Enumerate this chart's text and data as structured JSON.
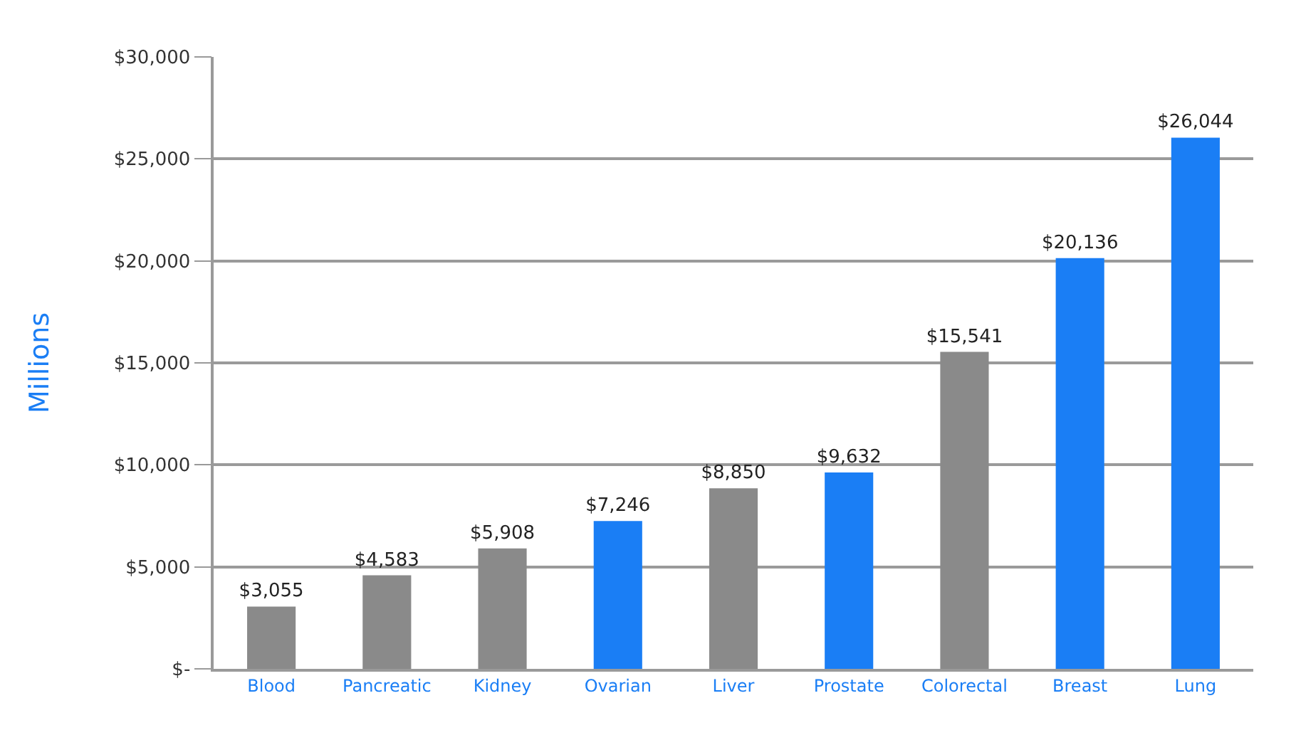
{
  "chart_data": {
    "type": "bar",
    "ylabel": "Millions",
    "categories": [
      "Blood",
      "Pancreatic",
      "Kidney",
      "Ovarian",
      "Liver",
      "Prostate",
      "Colorectal",
      "Breast",
      "Lung"
    ],
    "values": [
      3055,
      4583,
      5908,
      7246,
      8850,
      9632,
      15541,
      20136,
      26044
    ],
    "colors": [
      "#8a8a8a",
      "#8a8a8a",
      "#8a8a8a",
      "#1a7ef5",
      "#8a8a8a",
      "#1a7ef5",
      "#8a8a8a",
      "#1a7ef5",
      "#1a7ef5"
    ],
    "value_labels": [
      "$3,055",
      "$4,583",
      "$5,908",
      "$7,246",
      "$8,850",
      "$9,632",
      "$15,541",
      "$20,136",
      "$26,044"
    ],
    "ylim": [
      0,
      30000
    ],
    "yticks": [
      {
        "value": 0,
        "label": "$-"
      },
      {
        "value": 5000,
        "label": "$5,000"
      },
      {
        "value": 10000,
        "label": "$10,000"
      },
      {
        "value": 15000,
        "label": "$15,000"
      },
      {
        "value": 20000,
        "label": "$20,000"
      },
      {
        "value": 25000,
        "label": "$25,000"
      },
      {
        "value": 30000,
        "label": "$30,000"
      }
    ],
    "grid": "y"
  }
}
